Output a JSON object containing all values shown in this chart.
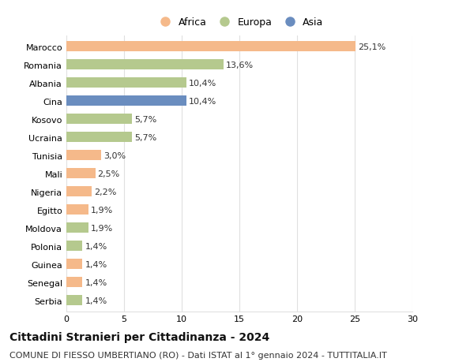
{
  "categories": [
    "Marocco",
    "Romania",
    "Albania",
    "Cina",
    "Kosovo",
    "Ucraina",
    "Tunisia",
    "Mali",
    "Nigeria",
    "Egitto",
    "Moldova",
    "Polonia",
    "Guinea",
    "Senegal",
    "Serbia"
  ],
  "values": [
    25.1,
    13.6,
    10.4,
    10.4,
    5.7,
    5.7,
    3.0,
    2.5,
    2.2,
    1.9,
    1.9,
    1.4,
    1.4,
    1.4,
    1.4
  ],
  "labels": [
    "25,1%",
    "13,6%",
    "10,4%",
    "10,4%",
    "5,7%",
    "5,7%",
    "3,0%",
    "2,5%",
    "2,2%",
    "1,9%",
    "1,9%",
    "1,4%",
    "1,4%",
    "1,4%",
    "1,4%"
  ],
  "continents": [
    "Africa",
    "Europa",
    "Europa",
    "Asia",
    "Europa",
    "Europa",
    "Africa",
    "Africa",
    "Africa",
    "Africa",
    "Europa",
    "Europa",
    "Africa",
    "Africa",
    "Europa"
  ],
  "colors": {
    "Africa": "#F5B98A",
    "Europa": "#B5C98E",
    "Asia": "#6A8DBF"
  },
  "legend_labels": [
    "Africa",
    "Europa",
    "Asia"
  ],
  "legend_colors": [
    "#F5B98A",
    "#B5C98E",
    "#6A8DBF"
  ],
  "xlim": [
    0,
    30
  ],
  "xticks": [
    0,
    5,
    10,
    15,
    20,
    25,
    30
  ],
  "title": "Cittadini Stranieri per Cittadinanza - 2024",
  "subtitle": "COMUNE DI FIESSO UMBERTIANO (RO) - Dati ISTAT al 1° gennaio 2024 - TUTTITALIA.IT",
  "background_color": "#ffffff",
  "grid_color": "#e0e0e0",
  "bar_height": 0.55,
  "title_fontsize": 10,
  "subtitle_fontsize": 8,
  "label_fontsize": 8,
  "tick_fontsize": 8,
  "legend_fontsize": 9
}
